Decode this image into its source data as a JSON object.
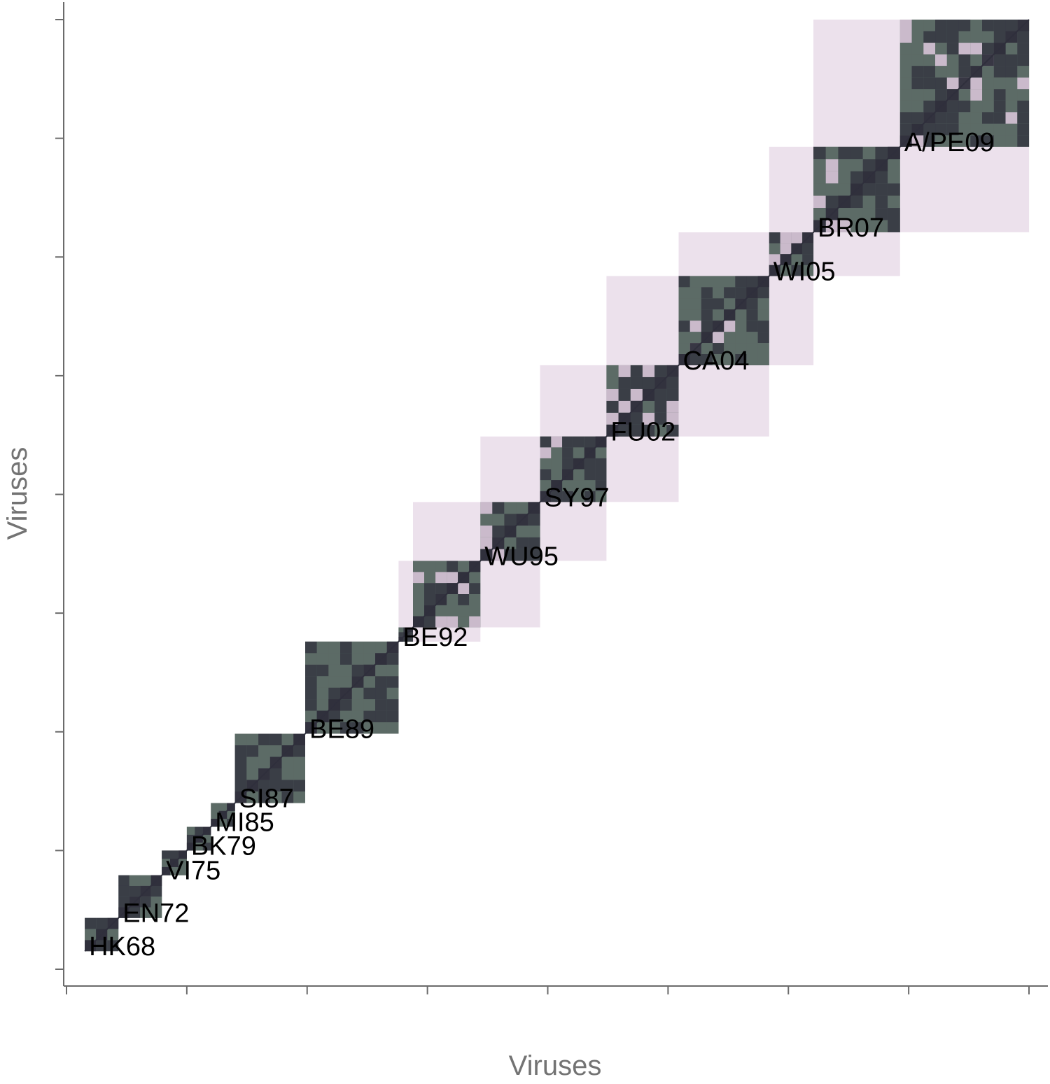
{
  "chart_data": {
    "type": "heatmap",
    "title": "",
    "xlabel": "Viruses",
    "ylabel": "Viruses",
    "x_tick_labels": [],
    "y_tick_labels": [],
    "grid": false,
    "legend": "none",
    "ordering": "viruses ordered chronologically along both axes; antigenic cluster blocks along the diagonal",
    "clusters": [
      {
        "name": "HK68",
        "start": 0.019,
        "end": 0.054
      },
      {
        "name": "EN72",
        "start": 0.054,
        "end": 0.099
      },
      {
        "name": "VI75",
        "start": 0.099,
        "end": 0.125
      },
      {
        "name": "BK79",
        "start": 0.125,
        "end": 0.15
      },
      {
        "name": "MI85",
        "start": 0.15,
        "end": 0.175
      },
      {
        "name": "SI87",
        "start": 0.175,
        "end": 0.248
      },
      {
        "name": "BE89",
        "start": 0.248,
        "end": 0.345
      },
      {
        "name": "BE92",
        "start": 0.345,
        "end": 0.36
      },
      {
        "name": "",
        "start": 0.36,
        "end": 0.43
      },
      {
        "name": "WU95",
        "start": 0.43,
        "end": 0.492
      },
      {
        "name": "SY97",
        "start": 0.492,
        "end": 0.561
      },
      {
        "name": "FU02",
        "start": 0.561,
        "end": 0.636
      },
      {
        "name": "CA04",
        "start": 0.636,
        "end": 0.73
      },
      {
        "name": "WI05",
        "start": 0.73,
        "end": 0.776
      },
      {
        "name": "BR07",
        "start": 0.776,
        "end": 0.866
      },
      {
        "name": "A/PE09",
        "start": 0.866,
        "end": 1.0
      }
    ],
    "colors": {
      "high_similarity": "#2f2f3c",
      "medium_similarity": "#5c6b66",
      "low_similarity": "#ddc8dd",
      "no_similarity": "#ffffff",
      "axis": "#6b6b6b",
      "axis_title": "#737373",
      "label": "#000000"
    }
  }
}
